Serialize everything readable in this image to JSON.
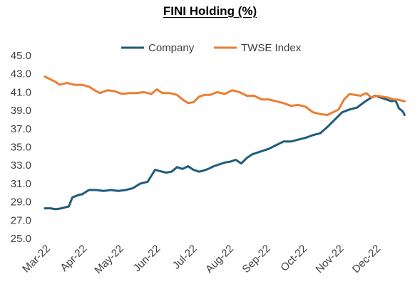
{
  "chart_data": {
    "type": "line",
    "title": "FINI Holding (%)",
    "xlabel": "",
    "ylabel": "",
    "ylim": [
      25.0,
      45.0
    ],
    "y_ticks": [
      "25.0",
      "27.0",
      "29.0",
      "31.0",
      "33.0",
      "35.0",
      "37.0",
      "39.0",
      "41.0",
      "43.0",
      "45.0"
    ],
    "x_ticks": [
      "Mar-22",
      "Apr-22",
      "May-22",
      "Jun-22",
      "Jul-22",
      "Aug-22",
      "Sep-22",
      "Oct-22",
      "Nov-22",
      "Dec-22"
    ],
    "x_range": [
      0,
      9.85
    ],
    "grid": false,
    "legend": "top",
    "series": [
      {
        "name": "Company",
        "color": "#1f5c7a",
        "x": [
          0,
          0.15,
          0.3,
          0.45,
          0.55,
          0.65,
          0.75,
          0.95,
          1.0,
          1.2,
          1.4,
          1.6,
          1.8,
          2.0,
          2.2,
          2.4,
          2.6,
          2.8,
          3.0,
          3.1,
          3.2,
          3.3,
          3.45,
          3.6,
          3.75,
          3.9,
          4.05,
          4.2,
          4.3,
          4.45,
          4.6,
          4.75,
          4.9,
          5.05,
          5.2,
          5.35,
          5.5,
          5.65,
          5.8,
          5.95,
          6.1,
          6.3,
          6.5,
          6.7,
          6.9,
          7.1,
          7.3,
          7.5,
          7.7,
          7.9,
          8.1,
          8.3,
          8.5,
          8.7,
          8.85,
          9.0,
          9.15,
          9.3,
          9.45,
          9.55,
          9.65,
          9.75,
          9.8
        ],
        "values": [
          28.3,
          28.3,
          28.2,
          28.3,
          28.4,
          28.5,
          29.5,
          29.8,
          29.8,
          30.3,
          30.3,
          30.2,
          30.3,
          30.2,
          30.3,
          30.5,
          31.0,
          31.2,
          32.5,
          32.4,
          32.3,
          32.2,
          32.3,
          32.8,
          32.6,
          32.9,
          32.5,
          32.3,
          32.4,
          32.6,
          32.9,
          33.1,
          33.3,
          33.4,
          33.6,
          33.2,
          33.8,
          34.2,
          34.4,
          34.6,
          34.8,
          35.2,
          35.6,
          35.6,
          35.8,
          36.0,
          36.3,
          36.5,
          37.2,
          38.0,
          38.8,
          39.1,
          39.3,
          39.9,
          40.3,
          40.6,
          40.4,
          40.2,
          40.0,
          40.1,
          39.2,
          38.9,
          38.5
        ]
      },
      {
        "name": "TWSE Index",
        "color": "#ed7d31",
        "x": [
          0,
          0.1,
          0.2,
          0.3,
          0.4,
          0.5,
          0.6,
          0.8,
          1.0,
          1.2,
          1.35,
          1.5,
          1.7,
          1.9,
          2.1,
          2.3,
          2.5,
          2.7,
          2.9,
          3.05,
          3.2,
          3.4,
          3.6,
          3.75,
          3.9,
          4.05,
          4.2,
          4.35,
          4.5,
          4.7,
          4.9,
          5.1,
          5.3,
          5.5,
          5.7,
          5.9,
          6.1,
          6.3,
          6.5,
          6.7,
          6.9,
          7.1,
          7.3,
          7.5,
          7.7,
          7.85,
          8.0,
          8.15,
          8.3,
          8.45,
          8.6,
          8.75,
          8.9,
          9.05,
          9.2,
          9.35,
          9.5,
          9.6,
          9.7,
          9.8
        ],
        "values": [
          42.7,
          42.5,
          42.3,
          42.1,
          41.8,
          41.9,
          42.0,
          41.8,
          41.8,
          41.6,
          41.2,
          40.9,
          41.2,
          41.1,
          40.8,
          40.9,
          40.9,
          41.0,
          40.8,
          41.3,
          40.9,
          40.9,
          40.7,
          40.2,
          39.8,
          39.9,
          40.5,
          40.7,
          40.7,
          41.0,
          40.8,
          41.2,
          41.0,
          40.6,
          40.6,
          40.2,
          40.2,
          40.0,
          39.8,
          39.5,
          39.6,
          39.4,
          38.8,
          38.6,
          38.5,
          38.8,
          39.1,
          40.2,
          40.8,
          40.7,
          40.6,
          40.9,
          40.4,
          40.6,
          40.5,
          40.4,
          40.2,
          40.2,
          40.1,
          40.0
        ]
      }
    ]
  }
}
